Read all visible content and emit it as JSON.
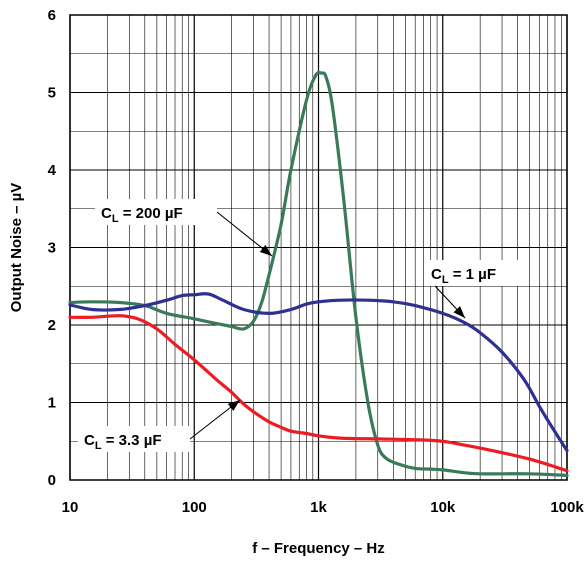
{
  "chart_data": {
    "type": "line",
    "title": "",
    "xlabel": "f – Frequency – Hz",
    "ylabel": "Output Noise – µV",
    "xscale": "log",
    "xlim": [
      10,
      100000
    ],
    "ylim": [
      0,
      6
    ],
    "grid": true,
    "x_ticks": [
      {
        "value": 10,
        "label": "10"
      },
      {
        "value": 100,
        "label": "100"
      },
      {
        "value": 1000,
        "label": "1k"
      },
      {
        "value": 10000,
        "label": "10k"
      },
      {
        "value": 100000,
        "label": "100k"
      }
    ],
    "y_ticks": [
      0,
      1,
      2,
      3,
      4,
      5,
      6
    ],
    "series": [
      {
        "name": "CL = 200 µF",
        "color": "#3a7a5a",
        "points": [
          [
            10,
            2.29
          ],
          [
            15,
            2.3
          ],
          [
            25,
            2.29
          ],
          [
            40,
            2.25
          ],
          [
            60,
            2.15
          ],
          [
            100,
            2.08
          ],
          [
            150,
            2.02
          ],
          [
            200,
            1.98
          ],
          [
            250,
            1.95
          ],
          [
            300,
            2.05
          ],
          [
            350,
            2.3
          ],
          [
            400,
            2.65
          ],
          [
            500,
            3.3
          ],
          [
            600,
            4.0
          ],
          [
            800,
            4.9
          ],
          [
            950,
            5.22
          ],
          [
            1050,
            5.25
          ],
          [
            1150,
            5.2
          ],
          [
            1300,
            4.8
          ],
          [
            1600,
            3.6
          ],
          [
            2000,
            2.1
          ],
          [
            2500,
            1.0
          ],
          [
            3000,
            0.45
          ],
          [
            3500,
            0.28
          ],
          [
            4500,
            0.2
          ],
          [
            6000,
            0.15
          ],
          [
            8000,
            0.14
          ],
          [
            10000,
            0.13
          ],
          [
            14000,
            0.1
          ],
          [
            20000,
            0.08
          ],
          [
            50000,
            0.08
          ],
          [
            100000,
            0.06
          ]
        ]
      },
      {
        "name": "CL = 1 µF",
        "color": "#2e3192",
        "points": [
          [
            10,
            2.26
          ],
          [
            15,
            2.2
          ],
          [
            25,
            2.2
          ],
          [
            40,
            2.25
          ],
          [
            60,
            2.32
          ],
          [
            80,
            2.38
          ],
          [
            100,
            2.39
          ],
          [
            130,
            2.4
          ],
          [
            170,
            2.32
          ],
          [
            250,
            2.2
          ],
          [
            400,
            2.15
          ],
          [
            600,
            2.2
          ],
          [
            800,
            2.27
          ],
          [
            1000,
            2.3
          ],
          [
            1500,
            2.32
          ],
          [
            2500,
            2.32
          ],
          [
            4000,
            2.3
          ],
          [
            6000,
            2.25
          ],
          [
            10000,
            2.15
          ],
          [
            15000,
            2.03
          ],
          [
            20000,
            1.9
          ],
          [
            30000,
            1.65
          ],
          [
            45000,
            1.3
          ],
          [
            60000,
            0.95
          ],
          [
            80000,
            0.62
          ],
          [
            100000,
            0.38
          ]
        ]
      },
      {
        "name": "CL = 3.3 µF",
        "color": "#ed1c24",
        "points": [
          [
            10,
            2.1
          ],
          [
            15,
            2.1
          ],
          [
            25,
            2.12
          ],
          [
            35,
            2.08
          ],
          [
            50,
            1.95
          ],
          [
            70,
            1.75
          ],
          [
            100,
            1.55
          ],
          [
            150,
            1.3
          ],
          [
            200,
            1.13
          ],
          [
            250,
            0.98
          ],
          [
            300,
            0.88
          ],
          [
            400,
            0.75
          ],
          [
            500,
            0.68
          ],
          [
            600,
            0.63
          ],
          [
            800,
            0.6
          ],
          [
            1000,
            0.57
          ],
          [
            1500,
            0.54
          ],
          [
            3000,
            0.53
          ],
          [
            6000,
            0.52
          ],
          [
            10000,
            0.5
          ],
          [
            15000,
            0.45
          ],
          [
            25000,
            0.38
          ],
          [
            50000,
            0.27
          ],
          [
            100000,
            0.12
          ]
        ]
      }
    ],
    "annotations": [
      {
        "series": 0,
        "prefix": "C",
        "sub": "L",
        "suffix": " = 200 µF"
      },
      {
        "series": 1,
        "prefix": "C",
        "sub": "L",
        "suffix": " = 1 µF"
      },
      {
        "series": 2,
        "prefix": "C",
        "sub": "L",
        "suffix": " = 3.3 µF"
      }
    ]
  }
}
